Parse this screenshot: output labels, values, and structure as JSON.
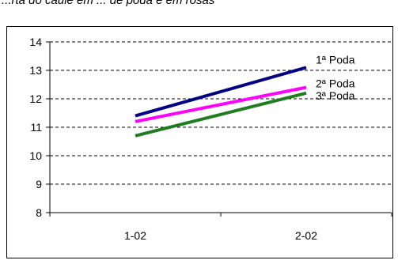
{
  "header": {
    "title_fragment": "...rta do caule em ... de poda e em rosas"
  },
  "chart_data": {
    "type": "line",
    "categories": [
      "1-02",
      "2-02"
    ],
    "series": [
      {
        "name": "1ª Poda",
        "values": [
          11.4,
          13.1
        ],
        "color": "#000080"
      },
      {
        "name": "2ª Poda",
        "values": [
          11.2,
          12.4
        ],
        "color": "#ff00ff"
      },
      {
        "name": "3ª Poda",
        "values": [
          10.7,
          12.2
        ],
        "color": "#1e7d1e"
      }
    ],
    "ylim": [
      8,
      14
    ],
    "yticks": [
      8,
      9,
      10,
      11,
      12,
      13,
      14
    ],
    "grid": "horizontal-dashed",
    "legend": "inline-right",
    "title": "",
    "xlabel": "",
    "ylabel": ""
  }
}
